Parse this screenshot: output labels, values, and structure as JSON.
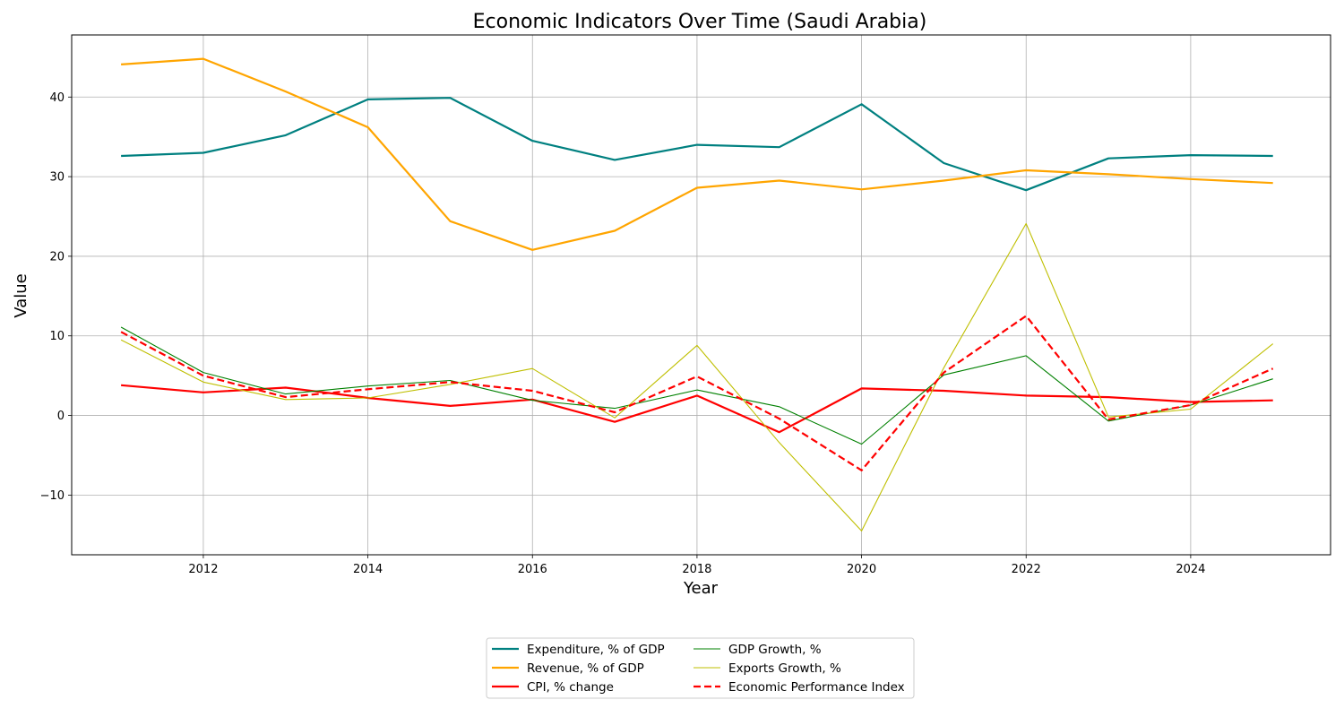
{
  "chart_data": {
    "type": "line",
    "title": "Economic Indicators Over Time (Saudi Arabia)",
    "xlabel": "Year",
    "ylabel": "Value",
    "xlim": [
      2010.4,
      2025.7
    ],
    "ylim": [
      -17.5,
      47.8
    ],
    "x_ticks": [
      2012,
      2014,
      2016,
      2018,
      2020,
      2022,
      2024
    ],
    "y_ticks": [
      -10,
      0,
      10,
      20,
      30,
      40
    ],
    "y_tick_labels": [
      "−10",
      "0",
      "10",
      "20",
      "30",
      "40"
    ],
    "grid": true,
    "legend_position": "below center",
    "x": [
      2011,
      2012,
      2013,
      2014,
      2015,
      2016,
      2017,
      2018,
      2019,
      2020,
      2021,
      2022,
      2023,
      2024,
      2025
    ],
    "series": [
      {
        "name": "Expenditure, % of GDP",
        "color": "#008080",
        "style": "solid",
        "width": "thick",
        "values": [
          32.6,
          33.0,
          35.2,
          39.7,
          39.9,
          34.5,
          32.1,
          34.0,
          33.7,
          39.1,
          31.7,
          28.3,
          32.3,
          32.7,
          32.6
        ]
      },
      {
        "name": "Revenue, % of GDP",
        "color": "#ffa500",
        "style": "solid",
        "width": "thick",
        "values": [
          44.1,
          44.8,
          40.7,
          36.2,
          24.4,
          20.8,
          23.2,
          28.6,
          29.5,
          28.4,
          29.5,
          30.8,
          30.3,
          29.7,
          29.2
        ]
      },
      {
        "name": "CPI, % change",
        "color": "#ff0000",
        "style": "solid",
        "width": "thick",
        "values": [
          3.8,
          2.9,
          3.5,
          2.2,
          1.2,
          2.0,
          -0.8,
          2.5,
          -2.1,
          3.4,
          3.1,
          2.5,
          2.3,
          1.7,
          1.9
        ]
      },
      {
        "name": "GDP Growth, %",
        "color": "#008000",
        "style": "solid",
        "width": "thin",
        "values": [
          11.1,
          5.4,
          2.7,
          3.7,
          4.4,
          1.9,
          0.9,
          3.2,
          1.1,
          -3.6,
          5.1,
          7.5,
          -0.7,
          1.3,
          4.6
        ]
      },
      {
        "name": "Exports Growth, %",
        "color": "#bfbf00",
        "style": "solid",
        "width": "thin",
        "values": [
          9.5,
          4.2,
          2.0,
          2.2,
          3.9,
          5.9,
          -0.3,
          8.8,
          -3.4,
          -14.5,
          6.0,
          24.1,
          -0.2,
          0.8,
          9.0
        ]
      },
      {
        "name": "Economic Performance Index",
        "color": "#ff0000",
        "style": "dashed",
        "width": "thick",
        "values": [
          10.5,
          5.0,
          2.3,
          3.3,
          4.2,
          3.1,
          0.4,
          4.9,
          -0.4,
          -6.9,
          5.4,
          12.5,
          -0.5,
          1.3,
          5.9
        ]
      }
    ]
  }
}
